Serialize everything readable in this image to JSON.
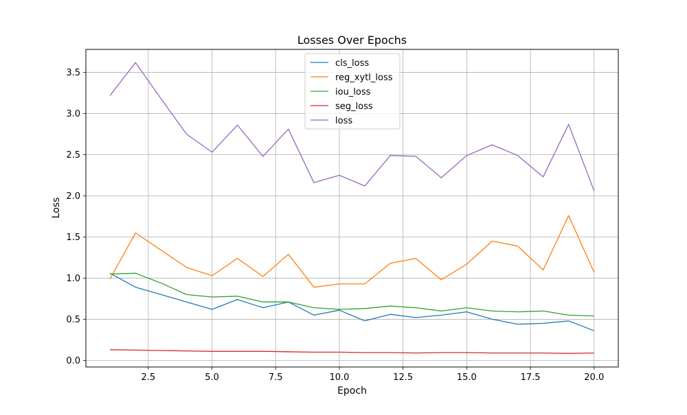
{
  "chart_data": {
    "type": "line",
    "title": "Losses Over Epochs",
    "xlabel": "Epoch",
    "ylabel": "Loss",
    "xlim": [
      0.05,
      20.95
    ],
    "ylim": [
      -0.08,
      3.78
    ],
    "xticks": [
      2.5,
      5.0,
      7.5,
      10.0,
      12.5,
      15.0,
      17.5,
      20.0
    ],
    "xtick_labels": [
      "2.5",
      "5.0",
      "7.5",
      "10.0",
      "12.5",
      "15.0",
      "17.5",
      "20.0"
    ],
    "yticks": [
      0.0,
      0.5,
      1.0,
      1.5,
      2.0,
      2.5,
      3.0,
      3.5
    ],
    "ytick_labels": [
      "0.0",
      "0.5",
      "1.0",
      "1.5",
      "2.0",
      "2.5",
      "3.0",
      "3.5"
    ],
    "grid": true,
    "legend_position": "top-center",
    "x": [
      1,
      2,
      3,
      4,
      5,
      6,
      7,
      8,
      9,
      10,
      11,
      12,
      13,
      14,
      15,
      16,
      17,
      18,
      19,
      20
    ],
    "series": [
      {
        "name": "cls_loss",
        "color": "#1f77b4",
        "values": [
          1.06,
          0.89,
          0.8,
          0.71,
          0.62,
          0.74,
          0.64,
          0.71,
          0.55,
          0.61,
          0.48,
          0.56,
          0.52,
          0.55,
          0.59,
          0.5,
          0.44,
          0.45,
          0.48,
          0.36
        ]
      },
      {
        "name": "reg_xytl_loss",
        "color": "#ff7f0e",
        "values": [
          0.99,
          1.55,
          1.34,
          1.13,
          1.03,
          1.24,
          1.02,
          1.29,
          0.89,
          0.93,
          0.93,
          1.18,
          1.24,
          0.98,
          1.17,
          1.45,
          1.39,
          1.1,
          1.76,
          1.07
        ]
      },
      {
        "name": "iou_loss",
        "color": "#2ca02c",
        "values": [
          1.05,
          1.06,
          0.94,
          0.8,
          0.77,
          0.78,
          0.71,
          0.71,
          0.64,
          0.62,
          0.63,
          0.66,
          0.64,
          0.6,
          0.64,
          0.6,
          0.59,
          0.6,
          0.55,
          0.54
        ]
      },
      {
        "name": "seg_loss",
        "color": "#d62728",
        "values": [
          0.13,
          0.125,
          0.12,
          0.115,
          0.11,
          0.11,
          0.11,
          0.105,
          0.1,
          0.1,
          0.095,
          0.095,
          0.09,
          0.095,
          0.095,
          0.09,
          0.09,
          0.09,
          0.085,
          0.09
        ]
      },
      {
        "name": "loss",
        "color": "#9467bd",
        "values": [
          3.22,
          3.62,
          3.18,
          2.75,
          2.53,
          2.86,
          2.48,
          2.81,
          2.16,
          2.25,
          2.12,
          2.49,
          2.48,
          2.22,
          2.49,
          2.62,
          2.49,
          2.23,
          2.87,
          2.06
        ]
      }
    ]
  }
}
